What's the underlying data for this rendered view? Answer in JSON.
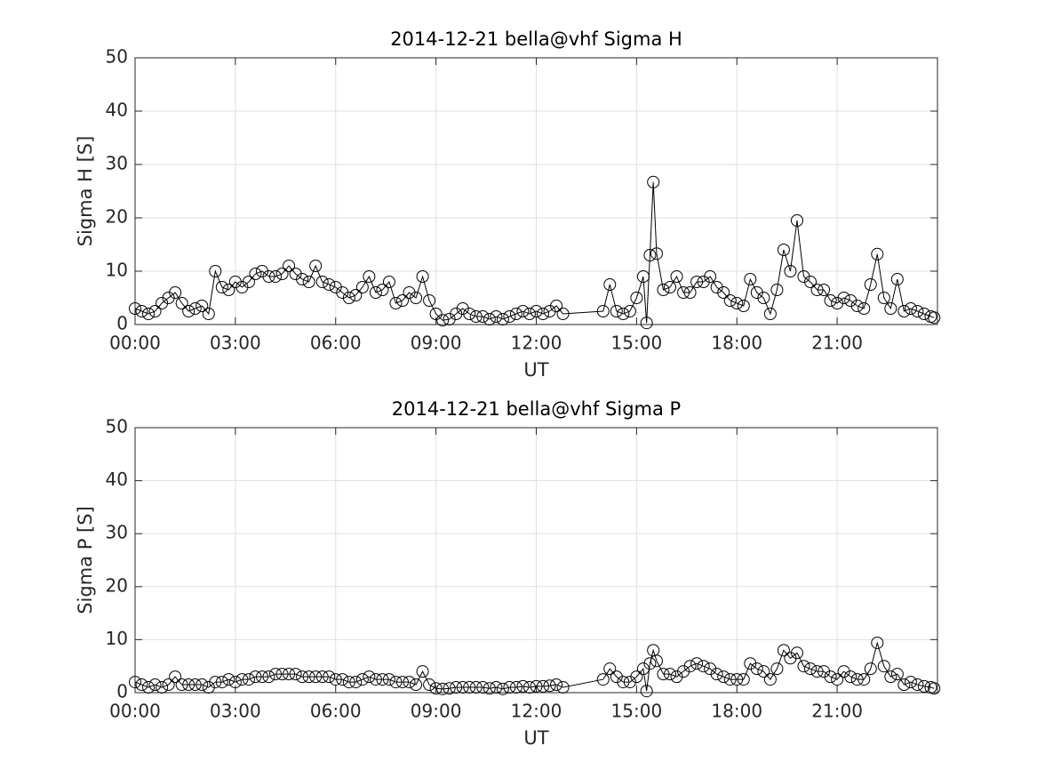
{
  "chart_data": [
    {
      "type": "line",
      "title": "2014-12-21  bella@vhf Sigma H",
      "xlabel": "UT",
      "ylabel": "Sigma H [S]",
      "x": [
        0,
        0.2,
        0.4,
        0.6,
        0.8,
        1,
        1.2,
        1.4,
        1.6,
        1.8,
        2,
        2.2,
        2.4,
        2.6,
        2.8,
        3,
        3.2,
        3.4,
        3.6,
        3.8,
        4,
        4.2,
        4.4,
        4.6,
        4.8,
        5,
        5.2,
        5.4,
        5.6,
        5.8,
        6,
        6.2,
        6.4,
        6.6,
        6.8,
        7,
        7.2,
        7.4,
        7.6,
        7.8,
        8,
        8.2,
        8.4,
        8.6,
        8.8,
        9,
        9.2,
        9.4,
        9.6,
        9.8,
        10,
        10.2,
        10.4,
        10.6,
        10.8,
        11,
        11.2,
        11.4,
        11.6,
        11.8,
        12,
        12.2,
        12.4,
        12.6,
        12.8,
        14,
        14.2,
        14.4,
        14.6,
        14.8,
        15,
        15.2,
        15.3,
        15.4,
        15.5,
        15.6,
        15.8,
        16,
        16.2,
        16.4,
        16.6,
        16.8,
        17,
        17.2,
        17.4,
        17.6,
        17.8,
        18,
        18.2,
        18.4,
        18.6,
        18.8,
        19,
        19.2,
        19.4,
        19.6,
        19.8,
        20,
        20.2,
        20.4,
        20.6,
        20.8,
        21,
        21.2,
        21.4,
        21.6,
        21.8,
        22,
        22.2,
        22.4,
        22.6,
        22.8,
        23,
        23.2,
        23.4,
        23.6,
        23.8,
        23.9
      ],
      "values": [
        3,
        2.5,
        2,
        2.5,
        4,
        5,
        6,
        4,
        2.5,
        3,
        3.5,
        2,
        10,
        7,
        6.5,
        8,
        7,
        8,
        9.5,
        10,
        9,
        9,
        9.5,
        11,
        9.5,
        8.5,
        8,
        11,
        8,
        7.5,
        7,
        6,
        5,
        5.5,
        7,
        9,
        6,
        6.5,
        8,
        4,
        4.5,
        6,
        5,
        9,
        4.5,
        2,
        0.8,
        1,
        2,
        3,
        2,
        1.5,
        1.5,
        1,
        1.5,
        1,
        1.5,
        2,
        2.5,
        2,
        2.5,
        2,
        2.5,
        3.5,
        2,
        2.5,
        7.5,
        2.5,
        2,
        2.5,
        5,
        9,
        0.3,
        13,
        26.7,
        13.3,
        6.5,
        7,
        9,
        6,
        6,
        8,
        8,
        9,
        7,
        6,
        4.5,
        4,
        3.5,
        8.5,
        6,
        5,
        2,
        6.5,
        14,
        10,
        19.5,
        9,
        8,
        6.5,
        6.5,
        4.5,
        4,
        5,
        4.5,
        3.5,
        3,
        7.5,
        13.2,
        5,
        3,
        8.5,
        2.5,
        3,
        2.5,
        2,
        1.5,
        1.3
      ],
      "color": "#000000",
      "marker": "circle",
      "xlim": [
        0,
        24
      ],
      "xticks": [
        {
          "value": 0,
          "label": "00:00"
        },
        {
          "value": 3,
          "label": "03:00"
        },
        {
          "value": 6,
          "label": "06:00"
        },
        {
          "value": 9,
          "label": "09:00"
        },
        {
          "value": 12,
          "label": "12:00"
        },
        {
          "value": 15,
          "label": "15:00"
        },
        {
          "value": 18,
          "label": "18:00"
        },
        {
          "value": 21,
          "label": "21:00"
        }
      ],
      "ylim": [
        0,
        50
      ],
      "yticks": [
        0,
        10,
        20,
        30,
        40,
        50
      ],
      "grid": true
    },
    {
      "type": "line",
      "title": "2014-12-21  bella@vhf Sigma P",
      "xlabel": "UT",
      "ylabel": "Sigma P [S]",
      "x": [
        0,
        0.2,
        0.4,
        0.6,
        0.8,
        1,
        1.2,
        1.4,
        1.6,
        1.8,
        2,
        2.2,
        2.4,
        2.6,
        2.8,
        3,
        3.2,
        3.4,
        3.6,
        3.8,
        4,
        4.2,
        4.4,
        4.6,
        4.8,
        5,
        5.2,
        5.4,
        5.6,
        5.8,
        6,
        6.2,
        6.4,
        6.6,
        6.8,
        7,
        7.2,
        7.4,
        7.6,
        7.8,
        8,
        8.2,
        8.4,
        8.6,
        8.8,
        9,
        9.2,
        9.4,
        9.6,
        9.8,
        10,
        10.2,
        10.4,
        10.6,
        10.8,
        11,
        11.2,
        11.4,
        11.6,
        11.8,
        12,
        12.2,
        12.4,
        12.6,
        12.8,
        14,
        14.2,
        14.4,
        14.6,
        14.8,
        15,
        15.2,
        15.3,
        15.4,
        15.5,
        15.6,
        15.8,
        16,
        16.2,
        16.4,
        16.6,
        16.8,
        17,
        17.2,
        17.4,
        17.6,
        17.8,
        18,
        18.2,
        18.4,
        18.6,
        18.8,
        19,
        19.2,
        19.4,
        19.6,
        19.8,
        20,
        20.2,
        20.4,
        20.6,
        20.8,
        21,
        21.2,
        21.4,
        21.6,
        21.8,
        22,
        22.2,
        22.4,
        22.6,
        22.8,
        23,
        23.2,
        23.4,
        23.6,
        23.8,
        23.9
      ],
      "values": [
        2,
        1.5,
        1,
        1.5,
        1,
        1.5,
        3,
        1.5,
        1.5,
        1.5,
        1.5,
        1,
        2,
        2,
        2.5,
        2,
        2.5,
        2.5,
        3,
        3,
        3,
        3.5,
        3.5,
        3.5,
        3.5,
        3,
        3,
        3,
        3,
        3,
        2.5,
        2.5,
        2,
        2,
        2.5,
        3,
        2.5,
        2.5,
        2.5,
        2,
        2,
        2,
        1.5,
        4,
        1.5,
        0.8,
        0.7,
        0.8,
        1,
        1,
        1,
        1,
        1,
        0.8,
        1,
        0.7,
        1,
        1,
        1.2,
        1,
        1.2,
        1.2,
        1.3,
        1.5,
        1,
        2.5,
        4.5,
        3,
        2,
        2,
        3,
        4.5,
        0.3,
        5.5,
        8,
        6,
        3.5,
        3.5,
        3,
        4,
        5,
        5.5,
        5,
        4.5,
        3.5,
        3,
        2.5,
        2.5,
        2.5,
        5.5,
        4.5,
        4,
        2.5,
        4.5,
        8,
        6.5,
        7.5,
        5,
        4.5,
        4,
        4,
        3,
        2.5,
        4,
        3,
        2.5,
        2.5,
        4.5,
        9.4,
        5,
        3,
        3.5,
        1.5,
        2,
        1.5,
        1.2,
        1,
        0.8
      ],
      "color": "#000000",
      "marker": "circle",
      "xlim": [
        0,
        24
      ],
      "xticks": [
        {
          "value": 0,
          "label": "00:00"
        },
        {
          "value": 3,
          "label": "03:00"
        },
        {
          "value": 6,
          "label": "06:00"
        },
        {
          "value": 9,
          "label": "09:00"
        },
        {
          "value": 12,
          "label": "12:00"
        },
        {
          "value": 15,
          "label": "15:00"
        },
        {
          "value": 18,
          "label": "18:00"
        },
        {
          "value": 21,
          "label": "21:00"
        }
      ],
      "ylim": [
        0,
        50
      ],
      "yticks": [
        0,
        10,
        20,
        30,
        40,
        50
      ],
      "grid": true
    }
  ]
}
